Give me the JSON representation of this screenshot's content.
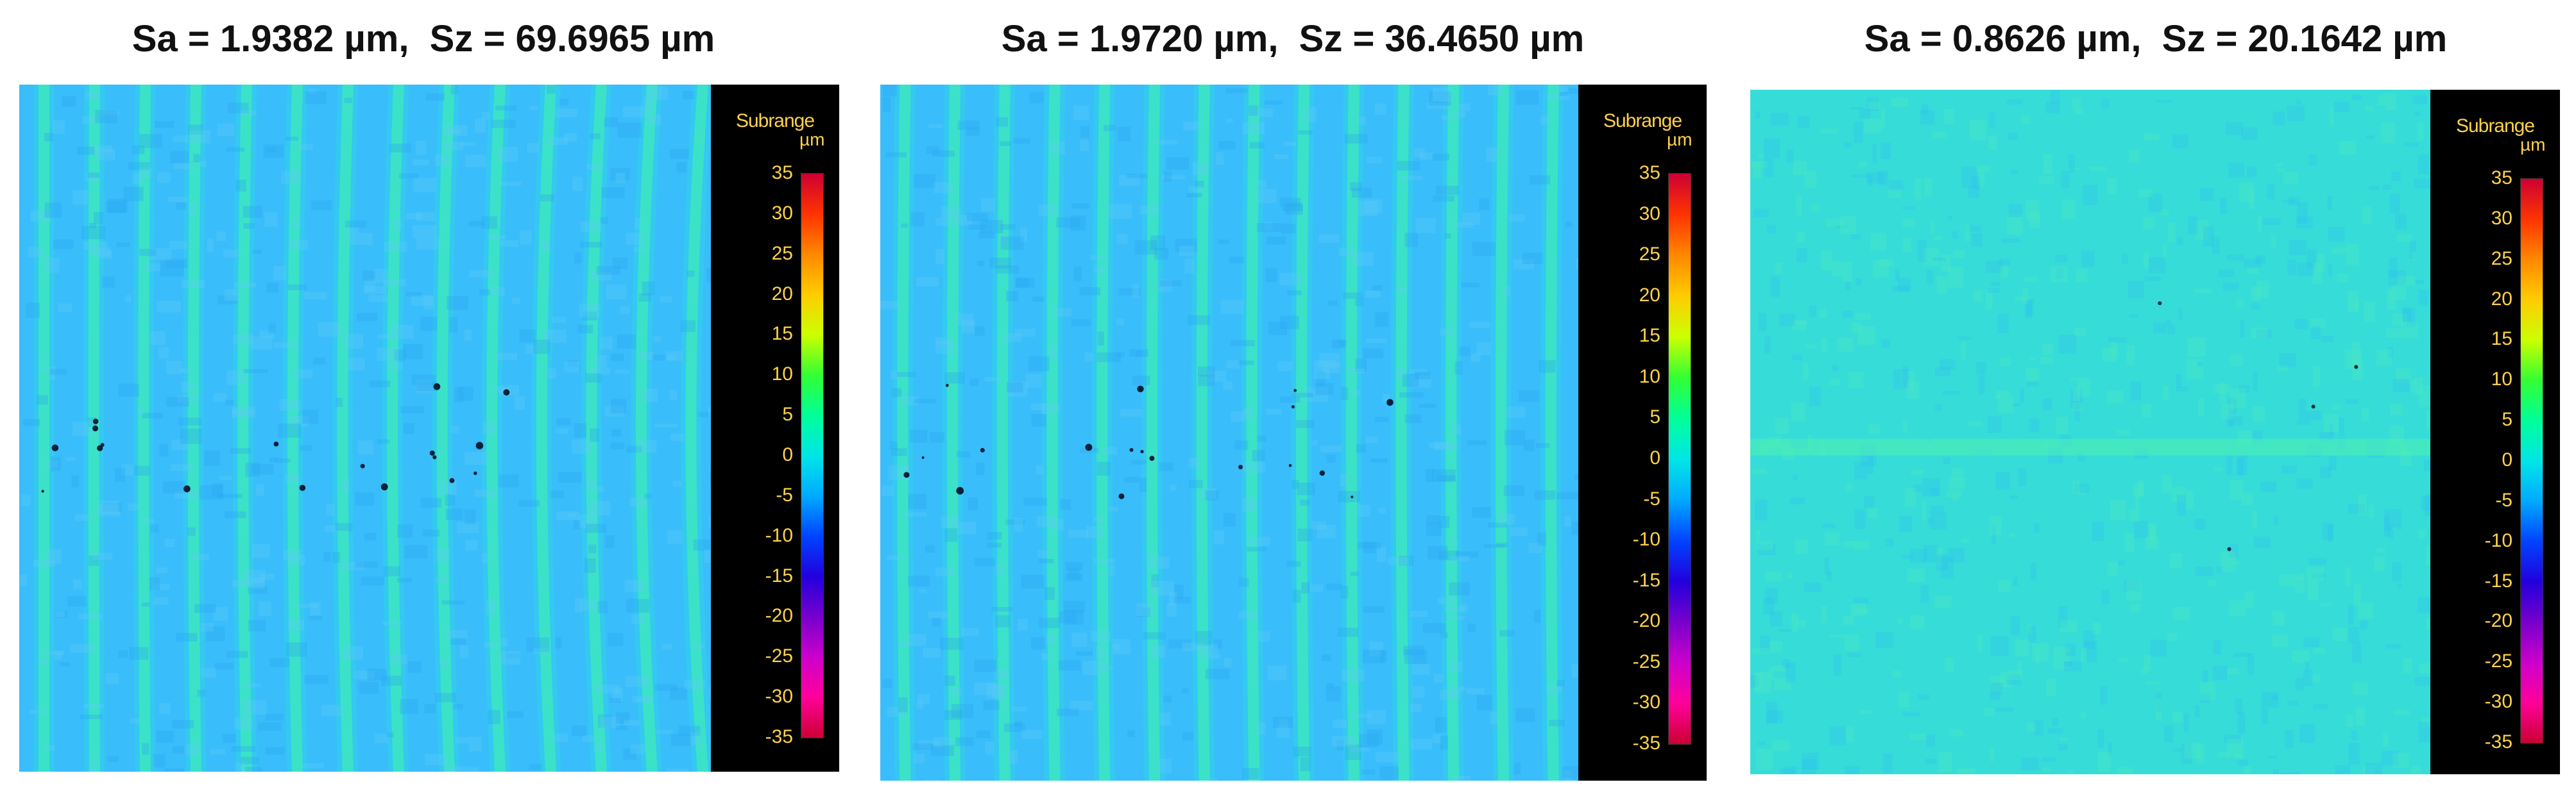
{
  "panels": [
    {
      "title": "Sa = 1.9382 µm,  Sz = 69.6965 µm",
      "legend_title": "Subrange",
      "legend_unit": "µm",
      "ticks": [
        "35",
        "30",
        "25",
        "20",
        "15",
        "10",
        "5",
        "0",
        "-5",
        "-10",
        "-15",
        "-20",
        "-25",
        "-30",
        "-35"
      ],
      "surface_pattern": "vertical-stripes"
    },
    {
      "title": "Sa = 1.9720 µm,  Sz = 36.4650 µm",
      "legend_title": "Subrange",
      "legend_unit": "µm",
      "ticks": [
        "35",
        "30",
        "25",
        "20",
        "15",
        "10",
        "5",
        "0",
        "-5",
        "-10",
        "-15",
        "-20",
        "-25",
        "-30",
        "-35"
      ],
      "surface_pattern": "vertical-stripes"
    },
    {
      "title": "Sa = 0.8626 µm,  Sz = 20.1642 µm",
      "legend_title": "Subrange",
      "legend_unit": "µm",
      "ticks": [
        "35",
        "30",
        "25",
        "20",
        "15",
        "10",
        "5",
        "0",
        "-5",
        "-10",
        "-15",
        "-20",
        "-25",
        "-30",
        "-35"
      ],
      "surface_pattern": "flat"
    }
  ],
  "colormap": [
    "#cc0033",
    "#ff3300",
    "#ff8800",
    "#ffcc00",
    "#ccff00",
    "#33ff33",
    "#00ff99",
    "#00e6e6",
    "#00aaff",
    "#0044ff",
    "#2200dd",
    "#7700cc",
    "#cc00cc",
    "#ff0099",
    "#cc0033"
  ]
}
